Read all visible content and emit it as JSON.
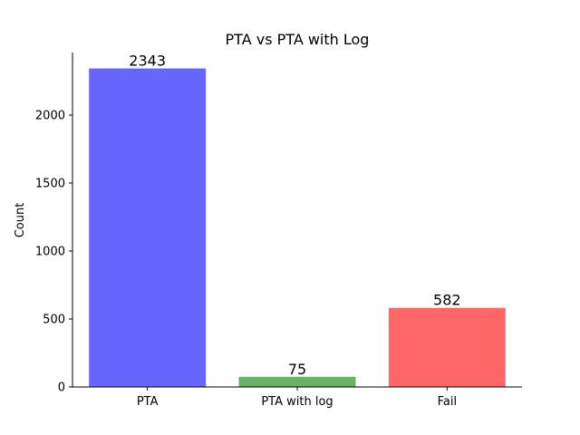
{
  "chart_data": {
    "type": "bar",
    "title": "PTA vs PTA with Log",
    "xlabel": "",
    "ylabel": "Count",
    "categories": [
      "PTA",
      "PTA with log",
      "Fail"
    ],
    "values": [
      2343,
      75,
      582
    ],
    "data_labels": [
      "2343",
      "75",
      "582"
    ],
    "colors": [
      "#6666ff",
      "#66b266",
      "#ff6666"
    ],
    "ylim": [
      0,
      2460
    ],
    "yticks": [
      0,
      500,
      1000,
      1500,
      2000
    ],
    "ytick_labels": [
      "0",
      "500",
      "1000",
      "1500",
      "2000"
    ],
    "grid": false,
    "legend": "none"
  }
}
